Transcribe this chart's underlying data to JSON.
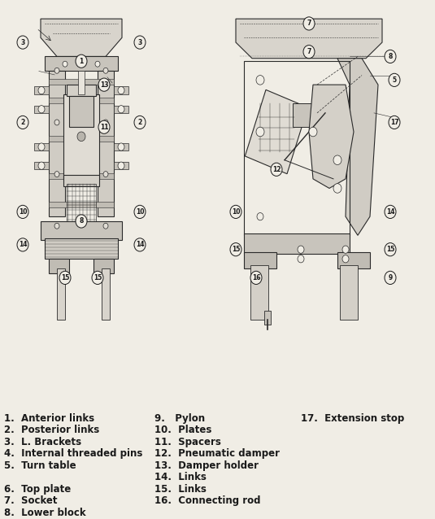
{
  "background_color": "#f5f5f0",
  "title": "",
  "legend_col1": [
    "1.  Anterior links",
    "2.  Posterior links",
    "3.  L. Brackets",
    "4.  Internal threaded pins",
    "5.  Turn table",
    "",
    "6.  Top plate",
    "7.  Socket",
    "8.  Lower block"
  ],
  "legend_col2": [
    "9.   Pylon",
    "10.  Plates",
    "11.  Spacers",
    "12.  Pneumatic damper",
    "13.  Damper holder",
    "14.  Links",
    "15.  Links",
    "16.  Connecting rod"
  ],
  "legend_col3": [
    "17.  Extension stop"
  ],
  "diagram_bg": "#e8e4dc",
  "text_color": "#1a1a1a",
  "font_size_legend": 8.5,
  "fig_width": 5.35,
  "fig_height": 6.38
}
